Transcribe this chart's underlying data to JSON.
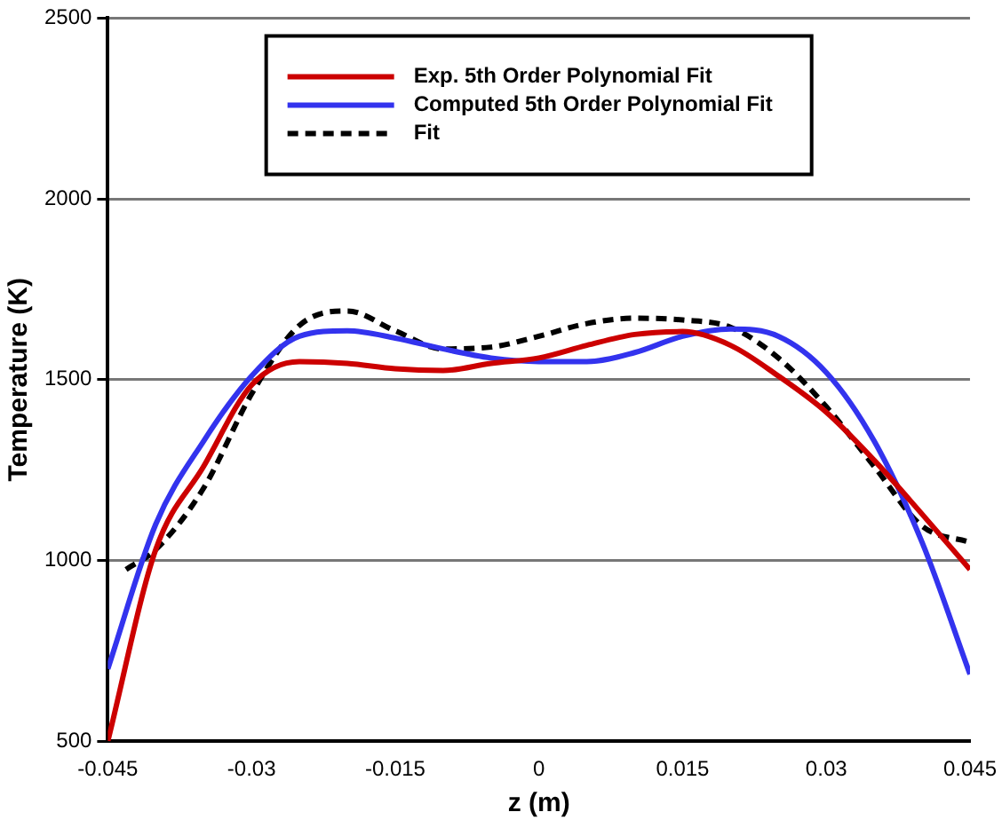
{
  "chart_data": {
    "type": "line",
    "xlabel": "z (m)",
    "ylabel": "Temperature (K)",
    "xlim": [
      -0.045,
      0.045
    ],
    "xticks": [
      -0.045,
      -0.03,
      -0.015,
      0,
      0.015,
      0.03,
      0.045
    ],
    "ylim": [
      500,
      2500
    ],
    "yticks": [
      500,
      1000,
      1500,
      2000,
      2500
    ],
    "grid": "y",
    "legend": "top",
    "marker": "none",
    "series": [
      {
        "name": "Exp. 5th Order Polynomial Fit",
        "color": "#cc0000",
        "line_style": "solid",
        "x": [
          -0.045,
          -0.04,
          -0.035,
          -0.03,
          -0.025,
          -0.02,
          -0.015,
          -0.01,
          -0.005,
          0,
          0.005,
          0.01,
          0.015,
          0.02,
          0.025,
          0.03,
          0.035,
          0.04,
          0.045
        ],
        "values": [
          500,
          1030,
          1260,
          1485,
          1550,
          1545,
          1530,
          1525,
          1545,
          1560,
          1595,
          1625,
          1633,
          1595,
          1510,
          1410,
          1277,
          1128,
          975
        ]
      },
      {
        "name": "Computed 5th Order Polynomial Fit",
        "color": "#3333ee",
        "line_style": "solid",
        "x": [
          -0.045,
          -0.04,
          -0.035,
          -0.03,
          -0.025,
          -0.02,
          -0.015,
          -0.01,
          -0.005,
          0,
          0.005,
          0.01,
          0.015,
          0.02,
          0.025,
          0.03,
          0.035,
          0.04,
          0.045
        ],
        "values": [
          700,
          1100,
          1330,
          1510,
          1620,
          1635,
          1615,
          1585,
          1560,
          1550,
          1550,
          1575,
          1620,
          1640,
          1620,
          1520,
          1330,
          1050,
          685
        ]
      },
      {
        "name": "Fit",
        "color": "#000000",
        "line_style": "dashed",
        "x": [
          -0.0431,
          -0.04,
          -0.035,
          -0.03,
          -0.025,
          -0.02,
          -0.015,
          -0.01,
          -0.005,
          0,
          0.005,
          0.01,
          0.015,
          0.02,
          0.025,
          0.03,
          0.035,
          0.04,
          0.045
        ],
        "values": [
          975,
          1030,
          1200,
          1460,
          1650,
          1690,
          1635,
          1585,
          1590,
          1620,
          1655,
          1670,
          1665,
          1645,
          1560,
          1425,
          1260,
          1095,
          1050
        ]
      }
    ]
  }
}
